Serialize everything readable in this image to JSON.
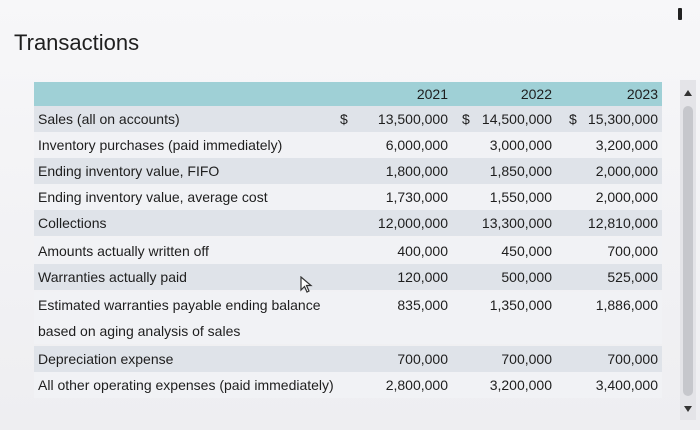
{
  "title": "Transactions",
  "columns": [
    "2021",
    "2022",
    "2023"
  ],
  "currency": "$",
  "rows": [
    {
      "label": "Sales (all on accounts)",
      "values": [
        "13,500,000",
        "14,500,000",
        "15,300,000"
      ],
      "dollar": true
    },
    {
      "label": "Inventory purchases (paid immediately)",
      "values": [
        "6,000,000",
        "3,000,000",
        "3,200,000"
      ]
    },
    {
      "label": "Ending inventory value, FIFO",
      "values": [
        "1,800,000",
        "1,850,000",
        "2,000,000"
      ]
    },
    {
      "label": "Ending inventory value, average cost",
      "values": [
        "1,730,000",
        "1,550,000",
        "2,000,000"
      ]
    },
    {
      "label": "Collections",
      "values": [
        "12,000,000",
        "13,300,000",
        "12,810,000"
      ]
    },
    {
      "label": "Amounts actually written off",
      "values": [
        "400,000",
        "450,000",
        "700,000"
      ]
    },
    {
      "label": "Warranties actually paid",
      "values": [
        "120,000",
        "500,000",
        "525,000"
      ]
    },
    {
      "label": "Estimated warranties payable ending balance",
      "values": [
        "835,000",
        "1,350,000",
        "1,886,000"
      ]
    },
    {
      "label": "based on aging analysis of sales",
      "values": [
        "",
        "",
        ""
      ]
    },
    {
      "label": "Depreciation expense",
      "values": [
        "700,000",
        "700,000",
        "700,000"
      ]
    },
    {
      "label": "All other operating expenses (paid immediately)",
      "values": [
        "2,800,000",
        "3,200,000",
        "3,400,000"
      ]
    }
  ]
}
